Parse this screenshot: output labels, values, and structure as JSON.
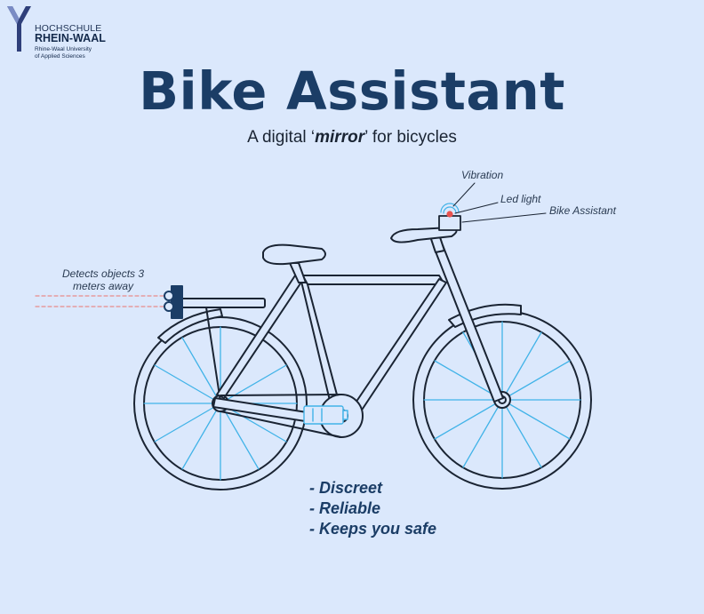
{
  "logo": {
    "line1": "HOCHSCHULE",
    "line2": "RHEIN-WAAL",
    "line3": "Rhine-Waal University",
    "line4": "of Applied Sciences"
  },
  "title": "Bike Assistant",
  "subtitle": {
    "prefix": "A digital ‘",
    "emphasis": "mirror",
    "suffix": "’ for bicycles"
  },
  "callouts": {
    "vibration": "Vibration",
    "led_light": "Led light",
    "bike_assistant": "Bike Assistant",
    "detects_line1": "Detects objects 3",
    "detects_line2": "meters away"
  },
  "features": [
    "- Discreet",
    "- Reliable",
    "- Keeps you safe"
  ],
  "colors": {
    "background": "#dbe8fc",
    "title": "#1b3d66",
    "spokes": "#41b3e8",
    "frame": "#1a2433",
    "sensor": "#1b3d66",
    "led": "#e8534f",
    "beam": "#e88a8a"
  }
}
